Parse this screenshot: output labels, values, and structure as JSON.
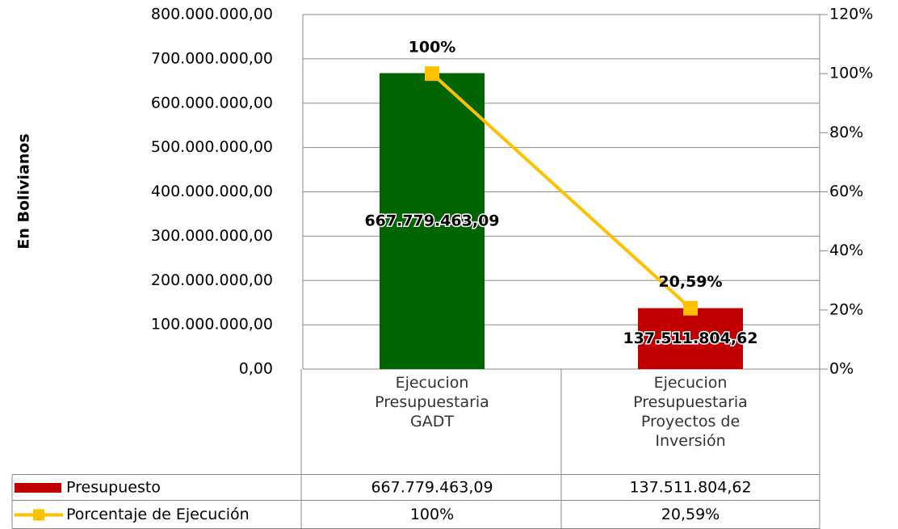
{
  "chart_data": {
    "type": "bar-line",
    "ylabel": "En Bolivianos",
    "categories": [
      "Ejecucion Presupuestaria GADT",
      "Ejecucion Presupuestaria Proyectos de Inversión"
    ],
    "series": [
      {
        "name": "Presupuesto",
        "type": "bar",
        "colors": [
          "#006400",
          "#c00000"
        ],
        "values": [
          667779463.09,
          137511804.62
        ],
        "value_labels": [
          "667.779.463,09",
          "137.511.804,62"
        ]
      },
      {
        "name": "Porcentaje de Ejecución",
        "type": "line",
        "axis": "y2",
        "color": "#ffc000",
        "values": [
          100,
          20.59
        ],
        "value_labels": [
          "100%",
          "20,59%"
        ]
      }
    ],
    "ylim": [
      0,
      800000000
    ],
    "yticks": [
      {
        "value": 0,
        "label": "0,00"
      },
      {
        "value": 100000000,
        "label": "100.000.000,00"
      },
      {
        "value": 200000000,
        "label": "200.000.000,00"
      },
      {
        "value": 300000000,
        "label": "300.000.000,00"
      },
      {
        "value": 400000000,
        "label": "400.000.000,00"
      },
      {
        "value": 500000000,
        "label": "500.000.000,00"
      },
      {
        "value": 600000000,
        "label": "600.000.000,00"
      },
      {
        "value": 700000000,
        "label": "700.000.000,00"
      },
      {
        "value": 800000000,
        "label": "800.000.000,00"
      }
    ],
    "y2lim": [
      0,
      120
    ],
    "y2ticks": [
      {
        "value": 0,
        "label": "0%"
      },
      {
        "value": 20,
        "label": "20%"
      },
      {
        "value": 40,
        "label": "40%"
      },
      {
        "value": 60,
        "label": "60%"
      },
      {
        "value": 80,
        "label": "80%"
      },
      {
        "value": 100,
        "label": "100%"
      },
      {
        "value": 120,
        "label": "120%"
      }
    ],
    "grid": true,
    "data_table": true
  }
}
